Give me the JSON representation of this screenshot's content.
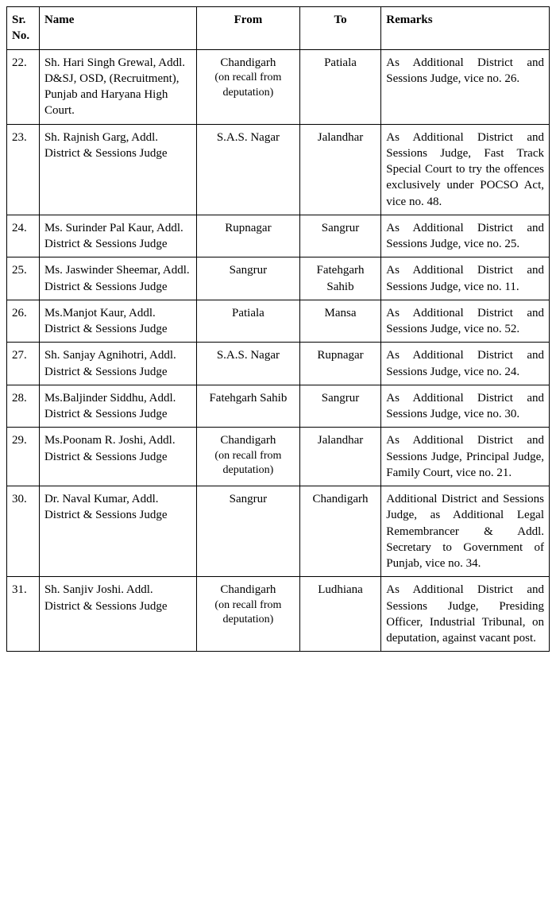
{
  "headers": {
    "sr": "Sr. No.",
    "name": "Name",
    "from": "From",
    "to": "To",
    "remarks": "Remarks"
  },
  "rows": [
    {
      "sr": "22.",
      "name": "Sh. Hari Singh Grewal, Addl. D&SJ, OSD, (Recruitment), Punjab and Haryana High Court.",
      "from_main": "Chandigarh",
      "from_sub": "(on recall from deputation)",
      "to": "Patiala",
      "remarks": "As Additional District and Sessions Judge, vice no. 26."
    },
    {
      "sr": "23.",
      "name": "Sh. Rajnish Garg, Addl. District & Sessions Judge",
      "from_main": "S.A.S. Nagar",
      "from_sub": "",
      "to": "Jalandhar",
      "remarks": "As Additional District and Sessions Judge, Fast Track Special Court to try the offences exclusively under POCSO Act, vice no. 48."
    },
    {
      "sr": "24.",
      "name": "Ms. Surinder Pal Kaur, Addl. District & Sessions Judge",
      "from_main": "Rupnagar",
      "from_sub": "",
      "to": "Sangrur",
      "remarks": "As Additional District and Sessions Judge, vice no. 25."
    },
    {
      "sr": "25.",
      "name": "Ms. Jaswinder Sheemar, Addl. District & Sessions Judge",
      "from_main": "Sangrur",
      "from_sub": "",
      "to": "Fatehgarh Sahib",
      "remarks": "As Additional District and Sessions Judge, vice no. 11."
    },
    {
      "sr": "26.",
      "name": "Ms.Manjot Kaur, Addl. District & Sessions Judge",
      "from_main": "Patiala",
      "from_sub": "",
      "to": "Mansa",
      "remarks": "As Additional District and Sessions Judge, vice no. 52."
    },
    {
      "sr": "27.",
      "name": "Sh. Sanjay Agnihotri, Addl. District & Sessions Judge",
      "from_main": "S.A.S. Nagar",
      "from_sub": "",
      "to": "Rupnagar",
      "remarks": "As Additional District and Sessions Judge, vice no. 24."
    },
    {
      "sr": "28.",
      "name": "Ms.Baljinder Siddhu, Addl. District & Sessions Judge",
      "from_main": "Fatehgarh Sahib",
      "from_sub": "",
      "to": "Sangrur",
      "remarks": "As Additional District and Sessions Judge, vice no. 30."
    },
    {
      "sr": "29.",
      "name": "Ms.Poonam R. Joshi, Addl. District & Sessions Judge",
      "from_main": "Chandigarh",
      "from_sub": "(on recall from deputation)",
      "to": "Jalandhar",
      "remarks": "As Additional District and Sessions Judge, Principal Judge, Family Court, vice no. 21."
    },
    {
      "sr": "30.",
      "name": "Dr. Naval Kumar, Addl. District & Sessions Judge",
      "from_main": "Sangrur",
      "from_sub": "",
      "to": "Chandigarh",
      "remarks": "Additional District and Sessions Judge, as Additional Legal Remembrancer & Addl. Secretary to Government of Punjab, vice no. 34."
    },
    {
      "sr": "31.",
      "name": "Sh. Sanjiv Joshi. Addl. District & Sessions Judge",
      "from_main": "Chandigarh",
      "from_sub": "(on recall from deputation)",
      "to": "Ludhiana",
      "remarks": "As Additional District and Sessions Judge, Presiding Officer, Industrial Tribunal, on deputation, against vacant post."
    }
  ]
}
